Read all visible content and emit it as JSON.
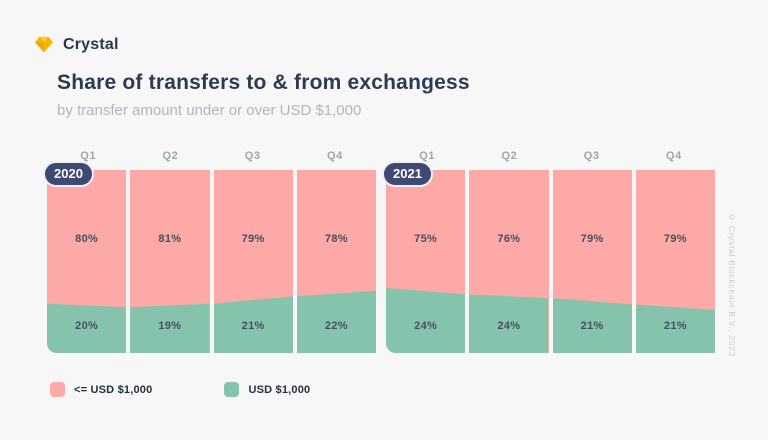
{
  "logo": {
    "text": "Crystal",
    "icon": "gem-icon",
    "color": "#F7B500"
  },
  "header": {
    "title": "Share of transfers to & from exchangess",
    "subtitle": "by transfer amount under or over USD $1,000"
  },
  "watermark": "© Crystal Blockchain B.V., 2022",
  "colors": {
    "background": "#F7F7F8",
    "pink": "#FCA9A8",
    "green": "#86C3AD",
    "title_navy": "#2C3B50",
    "badge_navy": "#3E4A74",
    "muted_gray": "#A0A5AD"
  },
  "legend": {
    "items": [
      {
        "label": "<= USD $1,000",
        "color": "#FCA9A8",
        "series": "under"
      },
      {
        "label": "USD $1,000",
        "color": "#86C3AD",
        "series": "over"
      }
    ]
  },
  "chart_data": {
    "type": "bar",
    "subtype": "100-percent-stacked-share-columns-with-smoothed-boundary",
    "title": "Share of transfers to & from exchangess",
    "subtitle": "by transfer amount under or over USD $1,000",
    "categories": [
      "Q1",
      "Q2",
      "Q3",
      "Q4"
    ],
    "unit": "%",
    "groups": [
      {
        "year": "2020",
        "series": [
          {
            "name": "<= USD $1,000",
            "color": "#FCA9A8",
            "values": [
              80,
              81,
              79,
              78
            ]
          },
          {
            "name": "USD $1,000",
            "color": "#86C3AD",
            "values": [
              20,
              19,
              21,
              22
            ]
          }
        ]
      },
      {
        "year": "2021",
        "series": [
          {
            "name": "<= USD $1,000",
            "color": "#FCA9A8",
            "values": [
              75,
              76,
              79,
              79
            ]
          },
          {
            "name": "USD $1,000",
            "color": "#86C3AD",
            "values": [
              24,
              24,
              21,
              21
            ]
          }
        ]
      }
    ],
    "layout_hints": {
      "legend_position": "bottom-left",
      "grid": false,
      "axes_shown": false,
      "value_labels": "inside-segments",
      "green_edge_fractions": {
        "2020": [
          0.27,
          0.25,
          0.27,
          0.31,
          0.34
        ],
        "2021": [
          0.355,
          0.32,
          0.3,
          0.265,
          0.235
        ]
      }
    }
  }
}
